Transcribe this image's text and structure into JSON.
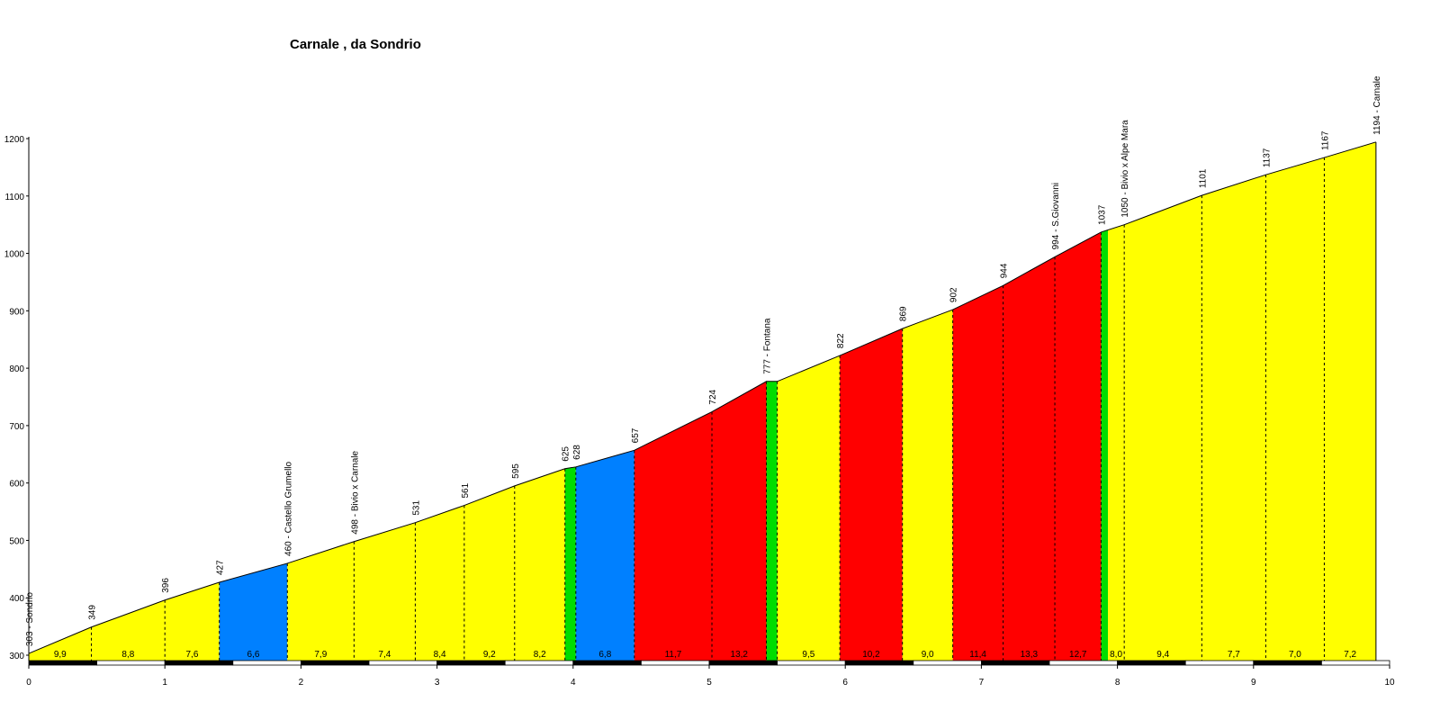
{
  "chart_data": {
    "type": "area",
    "title": "Carnale , da Sondrio",
    "xlabel": "",
    "ylabel": "",
    "xlim": [
      0,
      10
    ],
    "ylim": [
      300,
      1200
    ],
    "x_ticks": [
      "0",
      "1",
      "2",
      "3",
      "4",
      "5",
      "6",
      "7",
      "8",
      "9",
      "10"
    ],
    "y_ticks": [
      "300",
      "400",
      "500",
      "600",
      "700",
      "800",
      "900",
      "1000",
      "1100",
      "1200"
    ],
    "gradient_colors": {
      "yellow": "#ffff00",
      "blue": "#0080ff",
      "green": "#00dd00",
      "red": "#ff0000"
    },
    "points": [
      {
        "km": 0.0,
        "elev": 303,
        "label": "303 - Sondrio"
      },
      {
        "km": 0.46,
        "elev": 349,
        "label": "349"
      },
      {
        "km": 1.0,
        "elev": 396,
        "label": "396"
      },
      {
        "km": 1.4,
        "elev": 427,
        "label": "427"
      },
      {
        "km": 1.9,
        "elev": 460,
        "label": "460 - Castello Grumello"
      },
      {
        "km": 2.39,
        "elev": 498,
        "label": "498 - Bivio x Carnale"
      },
      {
        "km": 2.84,
        "elev": 531,
        "label": "531"
      },
      {
        "km": 3.2,
        "elev": 561,
        "label": "561"
      },
      {
        "km": 3.57,
        "elev": 595,
        "label": "595"
      },
      {
        "km": 3.94,
        "elev": 625,
        "label": "625"
      },
      {
        "km": 4.02,
        "elev": 628,
        "label": "628"
      },
      {
        "km": 4.45,
        "elev": 657,
        "label": "657"
      },
      {
        "km": 5.02,
        "elev": 724,
        "label": "724"
      },
      {
        "km": 5.42,
        "elev": 777,
        "label": "777 - Fontana"
      },
      {
        "km": 5.5,
        "elev": 777,
        "label": ""
      },
      {
        "km": 5.96,
        "elev": 822,
        "label": "822"
      },
      {
        "km": 6.42,
        "elev": 869,
        "label": "869"
      },
      {
        "km": 6.79,
        "elev": 902,
        "label": "902"
      },
      {
        "km": 7.16,
        "elev": 944,
        "label": "944"
      },
      {
        "km": 7.54,
        "elev": 994,
        "label": "994 - S.Giovanni"
      },
      {
        "km": 7.88,
        "elev": 1037,
        "label": "1037"
      },
      {
        "km": 8.05,
        "elev": 1050,
        "label": "1050 - Bivio x Alpe Mara"
      },
      {
        "km": 8.62,
        "elev": 1101,
        "label": "1101"
      },
      {
        "km": 9.09,
        "elev": 1137,
        "label": "1137"
      },
      {
        "km": 9.52,
        "elev": 1167,
        "label": "1167"
      },
      {
        "km": 9.9,
        "elev": 1194,
        "label": "1194 - Carnale"
      }
    ],
    "segments": [
      {
        "from": 0.0,
        "to": 0.46,
        "gradient": "9,9",
        "color": "yellow"
      },
      {
        "from": 0.46,
        "to": 1.0,
        "gradient": "8,8",
        "color": "yellow"
      },
      {
        "from": 1.0,
        "to": 1.4,
        "gradient": "7,6",
        "color": "yellow"
      },
      {
        "from": 1.4,
        "to": 1.9,
        "gradient": "6,6",
        "color": "blue"
      },
      {
        "from": 1.9,
        "to": 2.39,
        "gradient": "7,9",
        "color": "yellow"
      },
      {
        "from": 2.39,
        "to": 2.84,
        "gradient": "7,4",
        "color": "yellow"
      },
      {
        "from": 2.84,
        "to": 3.2,
        "gradient": "8,4",
        "color": "yellow"
      },
      {
        "from": 3.2,
        "to": 3.57,
        "gradient": "9,2",
        "color": "yellow"
      },
      {
        "from": 3.57,
        "to": 3.94,
        "gradient": "8,2",
        "color": "yellow"
      },
      {
        "from": 3.94,
        "to": 4.02,
        "gradient": "",
        "color": "green"
      },
      {
        "from": 4.02,
        "to": 4.45,
        "gradient": "6,8",
        "color": "blue"
      },
      {
        "from": 4.45,
        "to": 5.02,
        "gradient": "11,7",
        "color": "red"
      },
      {
        "from": 5.02,
        "to": 5.42,
        "gradient": "13,2",
        "color": "red"
      },
      {
        "from": 5.42,
        "to": 5.5,
        "gradient": "",
        "color": "green"
      },
      {
        "from": 5.5,
        "to": 5.96,
        "gradient": "9,5",
        "color": "yellow"
      },
      {
        "from": 5.96,
        "to": 6.42,
        "gradient": "10,2",
        "color": "red"
      },
      {
        "from": 6.42,
        "to": 6.79,
        "gradient": "9,0",
        "color": "yellow"
      },
      {
        "from": 6.79,
        "to": 7.16,
        "gradient": "11,4",
        "color": "red"
      },
      {
        "from": 7.16,
        "to": 7.54,
        "gradient": "13,3",
        "color": "red"
      },
      {
        "from": 7.54,
        "to": 7.88,
        "gradient": "12,7",
        "color": "red"
      },
      {
        "from": 7.88,
        "to": 7.93,
        "gradient": "",
        "color": "green"
      },
      {
        "from": 7.93,
        "to": 8.05,
        "gradient": "8,0",
        "color": "yellow"
      },
      {
        "from": 8.05,
        "to": 8.62,
        "gradient": "9,4",
        "color": "yellow"
      },
      {
        "from": 8.62,
        "to": 9.09,
        "gradient": "7,7",
        "color": "yellow"
      },
      {
        "from": 9.09,
        "to": 9.52,
        "gradient": "7,0",
        "color": "yellow"
      },
      {
        "from": 9.52,
        "to": 9.9,
        "gradient": "7,2",
        "color": "yellow"
      }
    ],
    "grid": false,
    "legend": "none"
  }
}
